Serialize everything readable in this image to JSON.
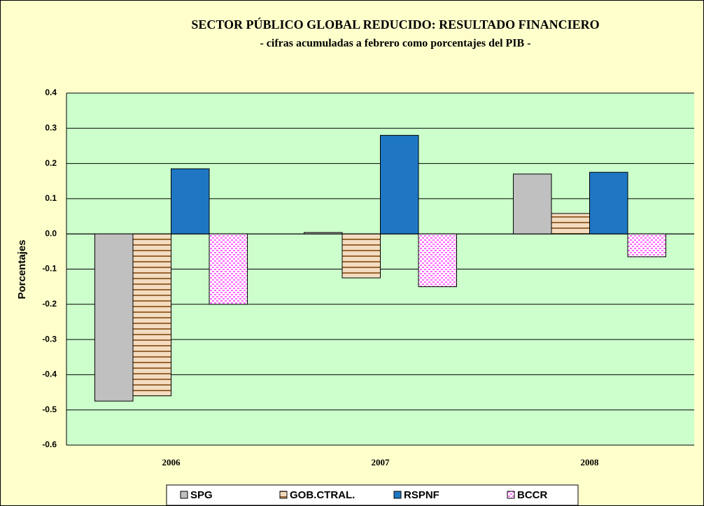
{
  "chart_data": {
    "type": "bar",
    "title": "SECTOR PÚBLICO GLOBAL REDUCIDO: RESULTADO FINANCIERO",
    "subtitle": "- cifras acumuladas a febrero como porcentajes del PIB -",
    "y_label": "Porcentajes",
    "categories": [
      "2006",
      "2007",
      "2008"
    ],
    "series": [
      {
        "name": "SPG",
        "color": "#c0c0c0",
        "pattern": "none",
        "values": [
          -0.475,
          0.004,
          0.17
        ]
      },
      {
        "name": "GOB.CTRAL.",
        "color": "#996633",
        "pattern": "stripes",
        "values": [
          -0.46,
          -0.125,
          0.058
        ]
      },
      {
        "name": "RSPNF",
        "color": "#1f77c4",
        "pattern": "none",
        "values": [
          0.185,
          0.28,
          0.175
        ]
      },
      {
        "name": "BCCR",
        "color": "#ff66ff",
        "pattern": "dots",
        "values": [
          -0.2,
          -0.15,
          -0.065
        ]
      }
    ],
    "ylim": [
      -0.6,
      0.4
    ],
    "yticks": [
      0.4,
      0.3,
      0.2,
      0.1,
      {
        "value": 0,
        "label": "0.0"
      },
      -0.1,
      -0.2,
      -0.3,
      -0.4,
      -0.5,
      -0.6
    ],
    "grid": true,
    "legend": "bottom"
  }
}
